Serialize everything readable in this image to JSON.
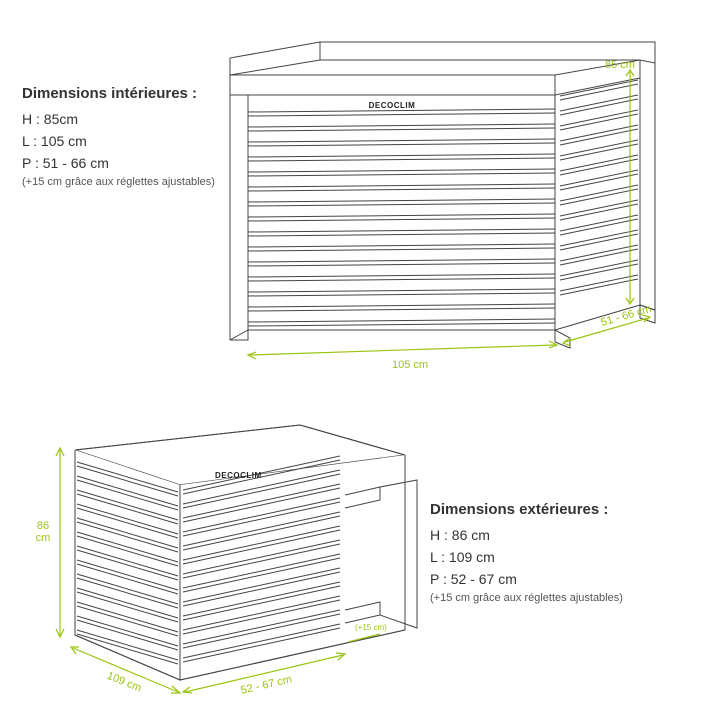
{
  "accent_color": "#99c40f",
  "line_color": "#444444",
  "bg_color": "#ffffff",
  "interior": {
    "title": "Dimensions intérieures :",
    "lines": [
      "H : 85cm",
      "L : 105 cm",
      "P : 51 - 66 cm"
    ],
    "note": "(+15 cm grâce aux réglettes ajustables)",
    "dim_height": "85 cm",
    "dim_width": "105 cm",
    "dim_depth": "51 - 66 cm",
    "brand": "DECOCLIM"
  },
  "exterior": {
    "title": "Dimensions extérieures :",
    "lines": [
      "H : 86 cm",
      "L : 109 cm",
      "P : 52 - 67 cm"
    ],
    "note": "(+15 cm grâce aux réglettes ajustables)",
    "dim_height": "86\ncm",
    "dim_width": "109 cm",
    "dim_depth": "52 - 67 cm",
    "dim_ext": "(+15 cm)",
    "brand": "DECOCLIM"
  }
}
